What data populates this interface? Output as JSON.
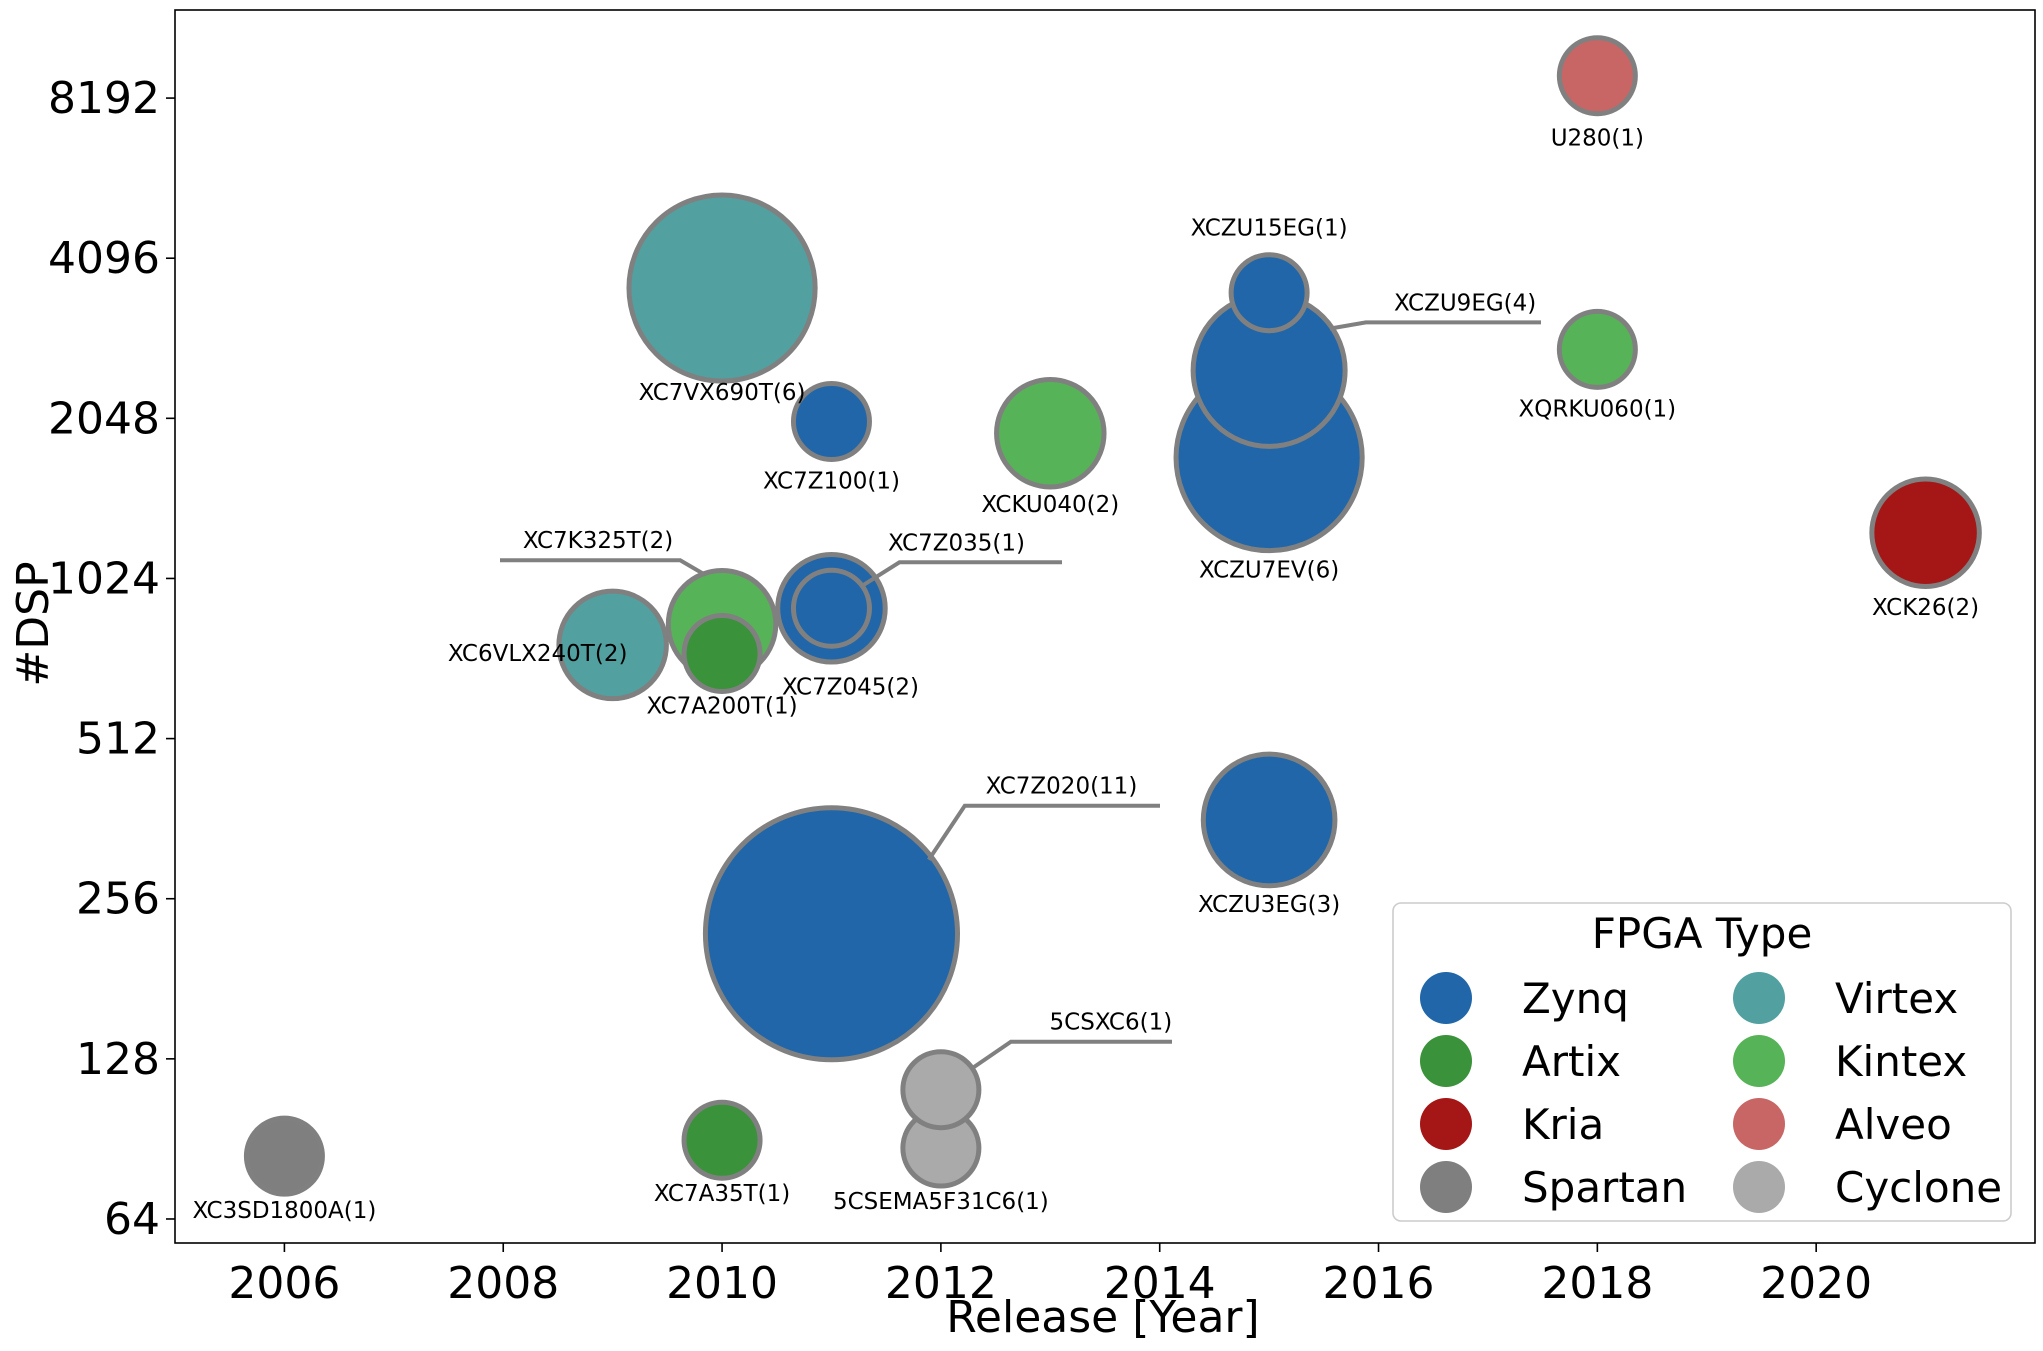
{
  "chart_data": {
    "type": "scatter",
    "xlabel": "Release [Year]",
    "ylabel": "#DSP",
    "xlim": [
      2005,
      2022
    ],
    "ylim_log2": [
      5.85,
      13.55
    ],
    "y_scale": "log2",
    "x_ticks": [
      2006,
      2008,
      2010,
      2012,
      2014,
      2016,
      2018,
      2020
    ],
    "y_ticks": [
      64,
      128,
      256,
      512,
      1024,
      2048,
      4096,
      8192
    ],
    "grid": false,
    "legend": {
      "title": "FPGA Type",
      "placement": "lower-right",
      "columns": 2,
      "entries": [
        {
          "name": "Zynq",
          "color": "#2166a8"
        },
        {
          "name": "Virtex",
          "color": "#52a0a0"
        },
        {
          "name": "Artix",
          "color": "#3a923a"
        },
        {
          "name": "Kintex",
          "color": "#57b357"
        },
        {
          "name": "Kria",
          "color": "#a51616"
        },
        {
          "name": "Alveo",
          "color": "#c86666"
        },
        {
          "name": "Spartan",
          "color": "#7f7f7f"
        },
        {
          "name": "Cyclone",
          "color": "#aaaaaa"
        }
      ]
    },
    "points": [
      {
        "label": "XC3SD1800A(1)",
        "type": "Spartan",
        "x": 2006,
        "y": 84,
        "count": 1
      },
      {
        "label": "XC7A35T(1)",
        "type": "Artix",
        "x": 2010,
        "y": 90,
        "count": 1
      },
      {
        "label": "5CSEMA5F31C6(1)",
        "type": "Cyclone",
        "x": 2012,
        "y": 87,
        "count": 1
      },
      {
        "label": "5CSXC6(1)",
        "type": "Cyclone",
        "x": 2012,
        "y": 112,
        "count": 1
      },
      {
        "label": "XC7Z020(11)",
        "type": "Zynq",
        "x": 2011,
        "y": 220,
        "count": 11
      },
      {
        "label": "XCZU3EG(3)",
        "type": "Zynq",
        "x": 2015,
        "y": 360,
        "count": 3
      },
      {
        "label": "XC6VLX240T(2)",
        "type": "Virtex",
        "x": 2009,
        "y": 768,
        "count": 2
      },
      {
        "label": "XC7K325T(2)",
        "type": "Kintex",
        "x": 2010,
        "y": 840,
        "count": 2
      },
      {
        "label": "XC7A200T(1)",
        "type": "Artix",
        "x": 2010,
        "y": 740,
        "count": 1
      },
      {
        "label": "XC7Z045(2)",
        "type": "Zynq",
        "x": 2011,
        "y": 900,
        "count": 2
      },
      {
        "label": "XC7Z035(1)",
        "type": "Zynq",
        "x": 2011,
        "y": 900,
        "count": 1
      },
      {
        "label": "XC7Z100(1)",
        "type": "Zynq",
        "x": 2011,
        "y": 2020,
        "count": 1
      },
      {
        "label": "XCKU040(2)",
        "type": "Kintex",
        "x": 2013,
        "y": 1920,
        "count": 2
      },
      {
        "label": "XC7VX690T(6)",
        "type": "Virtex",
        "x": 2010,
        "y": 3600,
        "count": 6
      },
      {
        "label": "XCZU7EV(6)",
        "type": "Zynq",
        "x": 2015,
        "y": 1728,
        "count": 6
      },
      {
        "label": "XCZU9EG(4)",
        "type": "Zynq",
        "x": 2015,
        "y": 2520,
        "count": 4
      },
      {
        "label": "XCZU15EG(1)",
        "type": "Zynq",
        "x": 2015,
        "y": 3528,
        "count": 1
      },
      {
        "label": "XQRKU060(1)",
        "type": "Kintex",
        "x": 2018,
        "y": 2760,
        "count": 1
      },
      {
        "label": "U280(1)",
        "type": "Alveo",
        "x": 2018,
        "y": 9024,
        "count": 1
      },
      {
        "label": "XCK26(2)",
        "type": "Kria",
        "x": 2021,
        "y": 1248,
        "count": 2
      }
    ]
  }
}
